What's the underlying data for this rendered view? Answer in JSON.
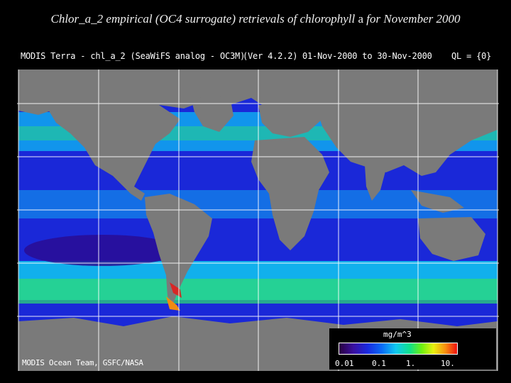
{
  "title": {
    "pre": "Chlor_a_2 empirical (OC4 surrogate) retrievals of chlorophyll",
    "a": "a",
    "post": "for November 2000"
  },
  "header": {
    "product": "MODIS Terra - chl_a_2 (SeaWiFS analog - OC3M)",
    "version": "(Ver 4.2.2)",
    "dates": "01-Nov-2000 to 30-Nov-2000",
    "ql": "QL = {0}"
  },
  "footer": {
    "credit": "MODIS Ocean Team, GSFC/NASA"
  },
  "colorbar": {
    "unit": "mg/m^3",
    "ticks": [
      "0.01",
      "0.1",
      "1.",
      "10."
    ],
    "colors": [
      "#2a0040",
      "#3a10a0",
      "#1a2ae0",
      "#0a6af5",
      "#10c8f0",
      "#10e08a",
      "#6ef010",
      "#e8f010",
      "#f89010",
      "#f01010"
    ]
  },
  "colors": {
    "land": "#7a7a7a",
    "ocean_oligotrophic": "#1a28d8",
    "ocean_mid": "#10a8f0",
    "ocean_productive": "#2ee070",
    "grid": "#ffffff"
  }
}
